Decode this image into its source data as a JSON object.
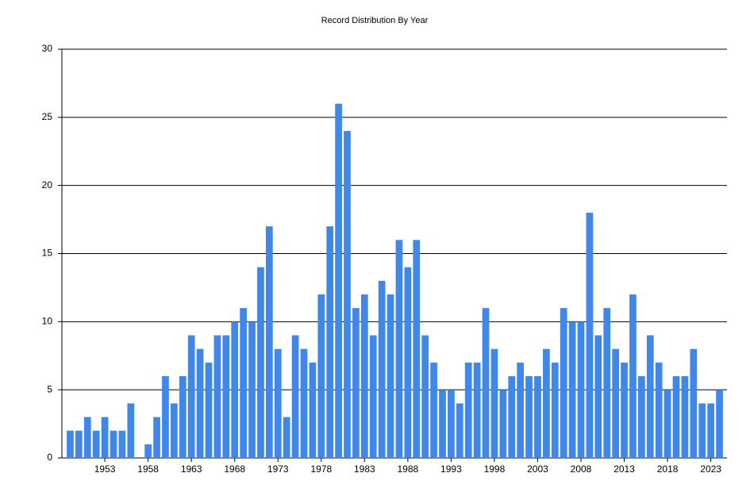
{
  "chart_data": {
    "type": "bar",
    "title": "Record Distribution By Year",
    "categories": [
      null,
      null,
      null,
      null,
      "1953",
      null,
      null,
      null,
      null,
      "1958",
      null,
      null,
      null,
      null,
      "1963",
      null,
      null,
      null,
      null,
      "1968",
      null,
      null,
      null,
      null,
      "1973",
      null,
      null,
      null,
      null,
      "1978",
      null,
      null,
      null,
      null,
      "1983",
      null,
      null,
      null,
      null,
      "1988",
      null,
      null,
      null,
      null,
      "1993",
      null,
      null,
      null,
      null,
      "1998",
      null,
      null,
      null,
      null,
      "2003",
      null,
      null,
      null,
      null,
      "2008",
      null,
      null,
      null,
      null,
      "2013",
      null,
      null,
      null,
      null,
      "2018",
      null,
      null,
      null,
      null,
      "2023",
      null
    ],
    "values": [
      2,
      2,
      3,
      2,
      3,
      2,
      2,
      4,
      0,
      1,
      3,
      6,
      4,
      6,
      9,
      8,
      7,
      9,
      9,
      10,
      11,
      10,
      14,
      17,
      8,
      3,
      9,
      8,
      7,
      12,
      17,
      26,
      24,
      11,
      12,
      9,
      13,
      12,
      16,
      14,
      16,
      9,
      7,
      5,
      5,
      4,
      7,
      7,
      11,
      8,
      5,
      6,
      7,
      6,
      6,
      8,
      7,
      11,
      10,
      10,
      18,
      9,
      11,
      8,
      7,
      12,
      6,
      9,
      7,
      5,
      6,
      6,
      8,
      4,
      4,
      5
    ],
    "color": "#3f88ea",
    "ylim": [
      0,
      30
    ],
    "yticks": [
      0,
      5,
      10,
      15,
      20,
      25,
      30
    ],
    "grid": true
  }
}
